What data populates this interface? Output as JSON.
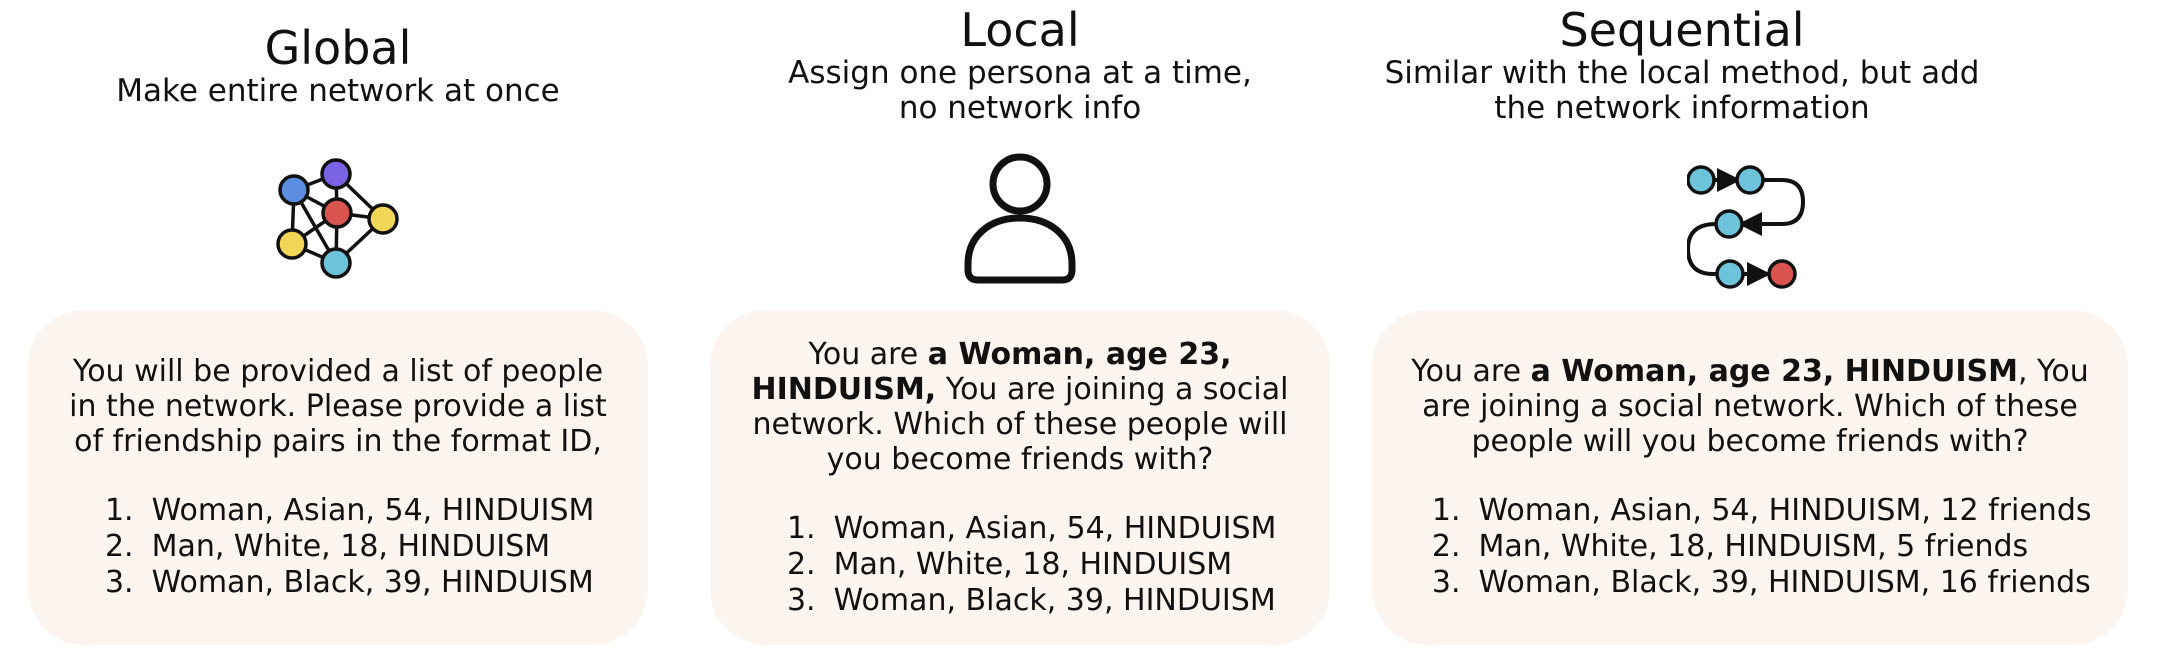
{
  "colors": {
    "card_bg": "#fcf4ef",
    "node_blue": "#5b8de0",
    "node_purple": "#7b63e6",
    "node_red": "#d9534f",
    "node_yellow": "#f2d657",
    "node_cyan": "#6cc3da",
    "stroke": "#111111"
  },
  "panels": [
    {
      "title": "Global",
      "subtitle": "Make entire network at once",
      "icon": "network-graph-icon",
      "prompt_parts": [
        {
          "text": "You will be provided a list of people in the network. Please provide a list of friendship pairs in the format ID,",
          "bold": false
        }
      ],
      "list": [
        {
          "num": "1.",
          "text": "Woman, Asian, 54, HINDUISM"
        },
        {
          "num": "2.",
          "text": "Man, White, 18, HINDUISM"
        },
        {
          "num": "3.",
          "text": "Woman, Black, 39, HINDUISM"
        }
      ]
    },
    {
      "title": "Local",
      "subtitle": "Assign one persona at a time,\nno network info",
      "icon": "person-icon",
      "prompt_parts": [
        {
          "text": "You are ",
          "bold": false
        },
        {
          "text": "a Woman, age 23, HINDUISM,",
          "bold": true
        },
        {
          "text": " You are joining a social network. Which of these people will you become friends with?",
          "bold": false
        }
      ],
      "list": [
        {
          "num": "1.",
          "text": "Woman, Asian, 54, HINDUISM"
        },
        {
          "num": "2.",
          "text": "Man, White, 18, HINDUISM"
        },
        {
          "num": "3.",
          "text": "Woman, Black, 39, HINDUISM"
        }
      ]
    },
    {
      "title": "Sequential",
      "subtitle": "Similar with the local method, but add\nthe network information",
      "icon": "sequential-flow-icon",
      "prompt_parts": [
        {
          "text": "You are ",
          "bold": false
        },
        {
          "text": "a Woman, age 23, HINDUISM",
          "bold": true
        },
        {
          "text": ", You are joining a social network. Which of these people will you become friends with?",
          "bold": false
        }
      ],
      "list": [
        {
          "num": "1.",
          "text": "Woman, Asian, 54, HINDUISM, 12 friends"
        },
        {
          "num": "2.",
          "text": "Man, White, 18, HINDUISM, 5 friends"
        },
        {
          "num": "3.",
          "text": "Woman, Black, 39, HINDUISM, 16 friends"
        }
      ]
    }
  ]
}
